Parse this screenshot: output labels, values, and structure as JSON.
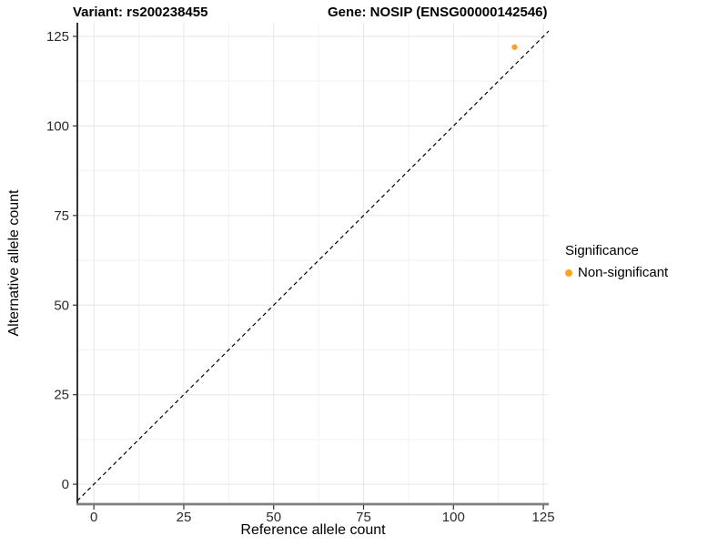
{
  "titles": {
    "variant": "Variant: rs200238455",
    "gene": "Gene: NOSIP (ENSG00000142546)"
  },
  "chart_data": {
    "type": "scatter",
    "xlabel": "Reference allele count",
    "ylabel": "Alternative allele count",
    "x_ticks": [
      0,
      25,
      50,
      75,
      100,
      125
    ],
    "y_ticks": [
      0,
      25,
      50,
      75,
      100,
      125
    ],
    "x_minor_ticks": [
      12.5,
      37.5,
      62.5,
      87.5,
      112.5
    ],
    "y_minor_ticks": [
      12.5,
      37.5,
      62.5,
      87.5,
      112.5
    ],
    "xlim": [
      -4.6,
      126.5
    ],
    "ylim": [
      -5.3,
      128.8
    ],
    "grid": true,
    "points": [
      {
        "x": 117,
        "y": 122,
        "series": "Non-significant",
        "color": "#FFA320"
      }
    ],
    "reference_line": {
      "equation": "y = x",
      "style": "dashed",
      "color": "#000000"
    },
    "legend": {
      "title": "Significance",
      "position": "right",
      "items": [
        {
          "label": "Non-significant",
          "color": "#FFA320"
        }
      ]
    },
    "colors": {
      "panel_background": "#ffffff",
      "grid_major": "#e6e6e6",
      "grid_minor": "#f2f2f2",
      "axis_line_left": "#000000",
      "axis_line_bottom": "#7f7f7f",
      "tick_label": "#2b2b2b"
    }
  }
}
